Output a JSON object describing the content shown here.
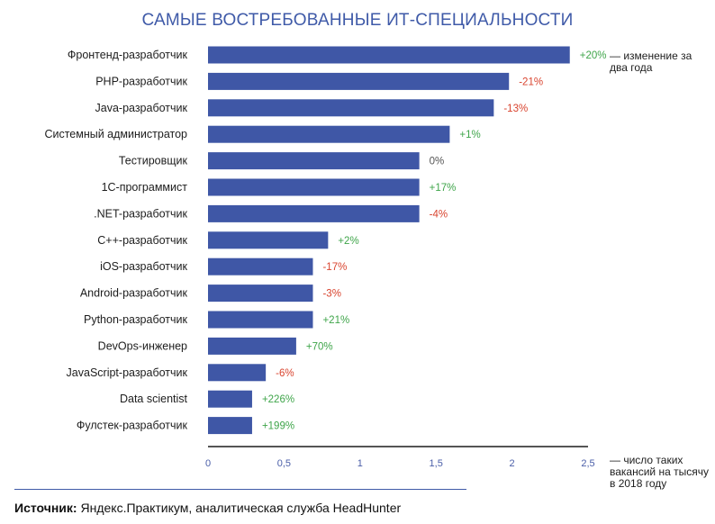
{
  "chart_data": {
    "type": "bar",
    "orientation": "horizontal",
    "title": "САМЫЕ ВОСТРЕБОВАННЫЕ ИТ-СПЕЦИАЛЬНОСТИ",
    "categories": [
      "Фронтенд-разработчик",
      "PHP-разработчик",
      "Java-разработчик",
      "Системный администратор",
      "Тестировщик",
      "1С-программист",
      ".NET-разработчик",
      "C++-разработчик",
      "iOS-разработчик",
      "Android-разработчик",
      "Python-разработчик",
      "DevOps-инженер",
      "JavaScript-разработчик",
      "Data scientist",
      "Фулстек-разработчик"
    ],
    "values": [
      2.38,
      1.98,
      1.88,
      1.59,
      1.39,
      1.39,
      1.39,
      0.79,
      0.69,
      0.69,
      0.69,
      0.58,
      0.38,
      0.29,
      0.29
    ],
    "change_labels": [
      "+20%",
      "-21%",
      "-13%",
      "+1%",
      "0%",
      "+17%",
      "-4%",
      "+2%",
      "-17%",
      "-3%",
      "+21%",
      "+70%",
      "-6%",
      "+226%",
      "+199%"
    ],
    "x_ticks": [
      "0",
      "0,5",
      "1",
      "1,5",
      "2",
      "2,5"
    ],
    "xlim": [
      0,
      2.5
    ],
    "xlabel": "— число таких вакансий на тысячу в 2018 году",
    "change_note": "— изменение за два года",
    "grid": false,
    "colors": {
      "bar": "#3f57a6",
      "positive": "#3fa54a",
      "negative": "#d9442f",
      "neutral": "#555555",
      "axis": "#555555",
      "title": "#3f5aa8"
    }
  },
  "source": {
    "label": "Источник:",
    "text": " Яндекс.Практикум, аналитическая служба HeadHunter"
  }
}
